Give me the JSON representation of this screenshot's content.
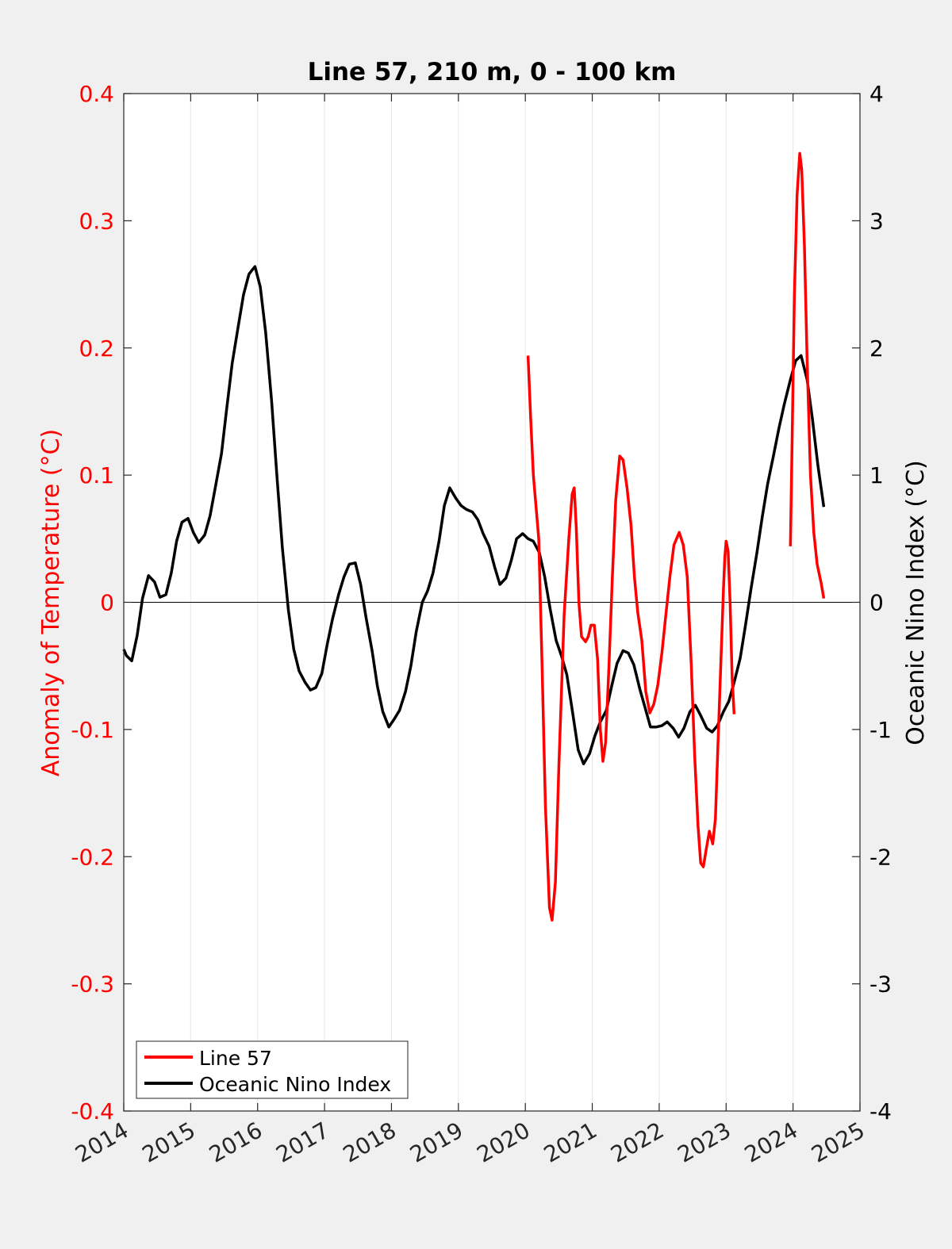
{
  "chart_data": {
    "type": "line",
    "title": "Line 57, 210 m, 0 - 100 km",
    "xlim": [
      2014,
      2025
    ],
    "x_ticks": [
      "2014",
      "2015",
      "2016",
      "2017",
      "2018",
      "2019",
      "2020",
      "2021",
      "2022",
      "2023",
      "2024",
      "2025"
    ],
    "x_tick_values": [
      2014,
      2015,
      2016,
      2017,
      2018,
      2019,
      2020,
      2021,
      2022,
      2023,
      2024,
      2025
    ],
    "ylabel_left": "Anomaly of Temperature (°C)",
    "ylim_left": [
      -0.4,
      0.4
    ],
    "y_ticks_left": [
      "-0.4",
      "-0.3",
      "-0.2",
      "-0.1",
      "0",
      "0.1",
      "0.2",
      "0.3",
      "0.4"
    ],
    "y_tick_values_left": [
      -0.4,
      -0.3,
      -0.2,
      -0.1,
      0,
      0.1,
      0.2,
      0.3,
      0.4
    ],
    "ylabel_right": "Oceanic Nino Index (°C)",
    "ylim_right": [
      -4,
      4
    ],
    "y_ticks_right": [
      "-4",
      "-3",
      "-2",
      "-1",
      "0",
      "1",
      "2",
      "3",
      "4"
    ],
    "y_tick_values_right": [
      -4,
      -3,
      -2,
      -1,
      0,
      1,
      2,
      3,
      4
    ],
    "grid": "vertical",
    "zero_line": true,
    "legend": {
      "position": "bottom-left",
      "entries": [
        "Line 57",
        "Oceanic Nino Index"
      ]
    },
    "colors": {
      "line57": "#ff0000",
      "oni": "#000000",
      "left_axis": "#ff0000",
      "right_axis": "#000000"
    },
    "series": [
      {
        "name": "Line 57",
        "axis": "left",
        "segments": [
          [
            [
              2020.04,
              0.194
            ],
            [
              2020.08,
              0.145
            ],
            [
              2020.12,
              0.1
            ],
            [
              2020.2,
              0.05
            ],
            [
              2020.25,
              -0.05
            ],
            [
              2020.3,
              -0.16
            ],
            [
              2020.36,
              -0.24
            ],
            [
              2020.4,
              -0.25
            ],
            [
              2020.45,
              -0.22
            ],
            [
              2020.5,
              -0.13
            ],
            [
              2020.58,
              -0.01
            ],
            [
              2020.65,
              0.05
            ],
            [
              2020.7,
              0.085
            ],
            [
              2020.73,
              0.09
            ],
            [
              2020.76,
              0.06
            ],
            [
              2020.8,
              0.0
            ],
            [
              2020.84,
              -0.027
            ],
            [
              2020.9,
              -0.031
            ],
            [
              2020.94,
              -0.027
            ],
            [
              2020.98,
              -0.018
            ],
            [
              2021.03,
              -0.018
            ],
            [
              2021.08,
              -0.045
            ],
            [
              2021.12,
              -0.1
            ],
            [
              2021.16,
              -0.125
            ],
            [
              2021.2,
              -0.11
            ],
            [
              2021.25,
              -0.05
            ],
            [
              2021.3,
              0.02
            ],
            [
              2021.35,
              0.08
            ],
            [
              2021.41,
              0.115
            ],
            [
              2021.46,
              0.112
            ],
            [
              2021.52,
              0.09
            ],
            [
              2021.58,
              0.06
            ],
            [
              2021.63,
              0.02
            ],
            [
              2021.68,
              -0.008
            ],
            [
              2021.74,
              -0.03
            ],
            [
              2021.8,
              -0.07
            ],
            [
              2021.86,
              -0.087
            ],
            [
              2021.92,
              -0.08
            ],
            [
              2021.98,
              -0.065
            ],
            [
              2022.04,
              -0.04
            ],
            [
              2022.1,
              -0.01
            ],
            [
              2022.16,
              0.02
            ],
            [
              2022.22,
              0.045
            ],
            [
              2022.3,
              0.055
            ],
            [
              2022.36,
              0.045
            ],
            [
              2022.42,
              0.02
            ],
            [
              2022.48,
              -0.05
            ],
            [
              2022.53,
              -0.12
            ],
            [
              2022.58,
              -0.175
            ],
            [
              2022.62,
              -0.205
            ],
            [
              2022.66,
              -0.208
            ],
            [
              2022.7,
              -0.195
            ],
            [
              2022.75,
              -0.18
            ],
            [
              2022.8,
              -0.19
            ],
            [
              2022.84,
              -0.17
            ],
            [
              2022.88,
              -0.11
            ],
            [
              2022.92,
              -0.05
            ],
            [
              2022.96,
              0.01
            ],
            [
              2022.98,
              0.035
            ],
            [
              2023.0,
              0.048
            ],
            [
              2023.03,
              0.04
            ],
            [
              2023.06,
              0.0
            ],
            [
              2023.09,
              -0.06
            ],
            [
              2023.12,
              -0.088
            ]
          ],
          [
            [
              2023.96,
              0.044
            ],
            [
              2023.99,
              0.14
            ],
            [
              2024.02,
              0.24
            ],
            [
              2024.06,
              0.32
            ],
            [
              2024.1,
              0.353
            ],
            [
              2024.13,
              0.34
            ],
            [
              2024.17,
              0.28
            ],
            [
              2024.21,
              0.19
            ],
            [
              2024.26,
              0.1
            ],
            [
              2024.31,
              0.055
            ],
            [
              2024.36,
              0.03
            ],
            [
              2024.42,
              0.015
            ],
            [
              2024.46,
              0.003
            ]
          ]
        ]
      },
      {
        "name": "Oceanic Nino Index",
        "axis": "right",
        "points": [
          [
            2014.0,
            -0.37
          ],
          [
            2014.04,
            -0.42
          ],
          [
            2014.12,
            -0.46
          ],
          [
            2014.2,
            -0.26
          ],
          [
            2014.28,
            0.03
          ],
          [
            2014.37,
            0.21
          ],
          [
            2014.46,
            0.16
          ],
          [
            2014.54,
            0.04
          ],
          [
            2014.63,
            0.06
          ],
          [
            2014.71,
            0.23
          ],
          [
            2014.79,
            0.48
          ],
          [
            2014.87,
            0.63
          ],
          [
            2014.96,
            0.66
          ],
          [
            2015.04,
            0.55
          ],
          [
            2015.12,
            0.47
          ],
          [
            2015.21,
            0.53
          ],
          [
            2015.29,
            0.68
          ],
          [
            2015.37,
            0.91
          ],
          [
            2015.46,
            1.17
          ],
          [
            2015.54,
            1.53
          ],
          [
            2015.62,
            1.88
          ],
          [
            2015.71,
            2.17
          ],
          [
            2015.79,
            2.42
          ],
          [
            2015.87,
            2.58
          ],
          [
            2015.96,
            2.64
          ],
          [
            2016.04,
            2.48
          ],
          [
            2016.12,
            2.12
          ],
          [
            2016.21,
            1.58
          ],
          [
            2016.29,
            0.98
          ],
          [
            2016.37,
            0.43
          ],
          [
            2016.46,
            -0.06
          ],
          [
            2016.54,
            -0.37
          ],
          [
            2016.62,
            -0.54
          ],
          [
            2016.71,
            -0.63
          ],
          [
            2016.79,
            -0.69
          ],
          [
            2016.87,
            -0.67
          ],
          [
            2016.96,
            -0.56
          ],
          [
            2017.04,
            -0.33
          ],
          [
            2017.12,
            -0.13
          ],
          [
            2017.21,
            0.06
          ],
          [
            2017.29,
            0.2
          ],
          [
            2017.37,
            0.3
          ],
          [
            2017.46,
            0.31
          ],
          [
            2017.54,
            0.14
          ],
          [
            2017.62,
            -0.12
          ],
          [
            2017.71,
            -0.38
          ],
          [
            2017.79,
            -0.66
          ],
          [
            2017.87,
            -0.86
          ],
          [
            2017.96,
            -0.98
          ],
          [
            2018.04,
            -0.92
          ],
          [
            2018.12,
            -0.85
          ],
          [
            2018.21,
            -0.7
          ],
          [
            2018.29,
            -0.5
          ],
          [
            2018.37,
            -0.23
          ],
          [
            2018.46,
            0.0
          ],
          [
            2018.54,
            0.09
          ],
          [
            2018.62,
            0.23
          ],
          [
            2018.71,
            0.48
          ],
          [
            2018.79,
            0.76
          ],
          [
            2018.87,
            0.9
          ],
          [
            2018.96,
            0.82
          ],
          [
            2019.04,
            0.76
          ],
          [
            2019.12,
            0.73
          ],
          [
            2019.21,
            0.71
          ],
          [
            2019.29,
            0.65
          ],
          [
            2019.37,
            0.54
          ],
          [
            2019.46,
            0.44
          ],
          [
            2019.54,
            0.28
          ],
          [
            2019.62,
            0.14
          ],
          [
            2019.71,
            0.19
          ],
          [
            2019.79,
            0.33
          ],
          [
            2019.87,
            0.5
          ],
          [
            2019.96,
            0.54
          ],
          [
            2020.04,
            0.5
          ],
          [
            2020.12,
            0.48
          ],
          [
            2020.21,
            0.39
          ],
          [
            2020.29,
            0.2
          ],
          [
            2020.37,
            -0.05
          ],
          [
            2020.46,
            -0.3
          ],
          [
            2020.54,
            -0.42
          ],
          [
            2020.62,
            -0.57
          ],
          [
            2020.71,
            -0.88
          ],
          [
            2020.79,
            -1.16
          ],
          [
            2020.87,
            -1.27
          ],
          [
            2020.96,
            -1.19
          ],
          [
            2021.04,
            -1.05
          ],
          [
            2021.12,
            -0.94
          ],
          [
            2021.21,
            -0.85
          ],
          [
            2021.29,
            -0.66
          ],
          [
            2021.37,
            -0.48
          ],
          [
            2021.46,
            -0.38
          ],
          [
            2021.54,
            -0.4
          ],
          [
            2021.62,
            -0.49
          ],
          [
            2021.71,
            -0.68
          ],
          [
            2021.79,
            -0.83
          ],
          [
            2021.87,
            -0.98
          ],
          [
            2021.96,
            -0.98
          ],
          [
            2022.04,
            -0.97
          ],
          [
            2022.12,
            -0.94
          ],
          [
            2022.21,
            -0.99
          ],
          [
            2022.29,
            -1.06
          ],
          [
            2022.37,
            -0.99
          ],
          [
            2022.46,
            -0.86
          ],
          [
            2022.54,
            -0.81
          ],
          [
            2022.62,
            -0.89
          ],
          [
            2022.71,
            -0.99
          ],
          [
            2022.79,
            -1.02
          ],
          [
            2022.87,
            -0.97
          ],
          [
            2022.96,
            -0.86
          ],
          [
            2023.04,
            -0.78
          ],
          [
            2023.12,
            -0.63
          ],
          [
            2023.21,
            -0.44
          ],
          [
            2023.29,
            -0.18
          ],
          [
            2023.37,
            0.1
          ],
          [
            2023.46,
            0.39
          ],
          [
            2023.54,
            0.67
          ],
          [
            2023.62,
            0.93
          ],
          [
            2023.71,
            1.16
          ],
          [
            2023.79,
            1.37
          ],
          [
            2023.87,
            1.56
          ],
          [
            2023.96,
            1.75
          ],
          [
            2024.04,
            1.9
          ],
          [
            2024.12,
            1.94
          ],
          [
            2024.21,
            1.75
          ],
          [
            2024.29,
            1.44
          ],
          [
            2024.37,
            1.08
          ],
          [
            2024.46,
            0.75
          ]
        ]
      }
    ]
  }
}
